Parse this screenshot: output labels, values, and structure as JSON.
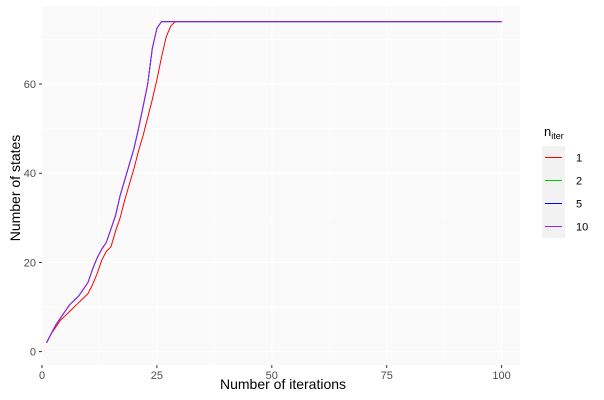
{
  "chart_data": {
    "type": "line",
    "xlabel": "Number of iterations",
    "ylabel": "Number of states",
    "xlim": [
      0,
      104
    ],
    "ylim": [
      -3,
      77.5
    ],
    "x_ticks": [
      0,
      25,
      50,
      75,
      100
    ],
    "y_ticks": [
      0,
      20,
      40,
      60
    ],
    "grid": true,
    "legend": {
      "title_main": "n",
      "title_sub": "iter",
      "placement": "right"
    },
    "series": [
      {
        "name": "1",
        "color": "#ff0000",
        "x": [
          1,
          2,
          3,
          4,
          5,
          6,
          7,
          8,
          9,
          10,
          11,
          12,
          13,
          14,
          15,
          16,
          17,
          18,
          19,
          20,
          21,
          22,
          23,
          24,
          25,
          26,
          27,
          28,
          29,
          100
        ],
        "y": [
          2,
          4,
          5.5,
          7,
          8,
          9,
          10,
          11,
          12,
          13,
          15,
          17.5,
          20.5,
          22.5,
          23.5,
          27,
          30,
          34,
          37.5,
          41,
          45,
          48.5,
          52.5,
          56.5,
          61,
          66,
          70.5,
          73,
          74,
          74
        ]
      },
      {
        "name": "2",
        "color": "#00cd00",
        "x": [
          1,
          2,
          3,
          4,
          5,
          6,
          7,
          8,
          9,
          10,
          11,
          12,
          13,
          14,
          15,
          16,
          17,
          18,
          19,
          20,
          21,
          22,
          23,
          24,
          25,
          26,
          27,
          100
        ],
        "y": [
          2,
          4,
          6,
          7.5,
          9,
          10.5,
          11.5,
          12.5,
          14,
          15.5,
          18.5,
          21,
          23,
          24.5,
          27.5,
          30.5,
          35,
          38.5,
          42,
          45.5,
          50,
          55,
          60,
          68,
          72.5,
          74,
          74,
          74
        ]
      },
      {
        "name": "5",
        "color": "#0000ff",
        "x": [
          1,
          2,
          3,
          4,
          5,
          6,
          7,
          8,
          9,
          10,
          11,
          12,
          13,
          14,
          15,
          16,
          17,
          18,
          19,
          20,
          21,
          22,
          23,
          24,
          25,
          26,
          27,
          100
        ],
        "y": [
          2,
          4,
          6,
          7.5,
          9,
          10.5,
          11.5,
          12.5,
          14,
          15.5,
          18.5,
          21,
          23,
          24.5,
          27.5,
          30.5,
          35,
          38.5,
          42,
          45.5,
          50,
          55,
          60,
          68,
          72.5,
          74,
          74,
          74
        ]
      },
      {
        "name": "10",
        "color": "#a020f0",
        "x": [
          1,
          2,
          3,
          4,
          5,
          6,
          7,
          8,
          9,
          10,
          11,
          12,
          13,
          14,
          15,
          16,
          17,
          18,
          19,
          20,
          21,
          22,
          23,
          24,
          25,
          26,
          27,
          100
        ],
        "y": [
          2,
          4,
          6,
          7.5,
          9,
          10.5,
          11.5,
          12.5,
          14,
          15.5,
          18.5,
          21,
          23,
          24.5,
          27.5,
          30.5,
          35,
          38.5,
          42,
          45.5,
          50,
          55,
          60,
          68,
          72.5,
          74,
          74,
          74
        ]
      }
    ]
  }
}
